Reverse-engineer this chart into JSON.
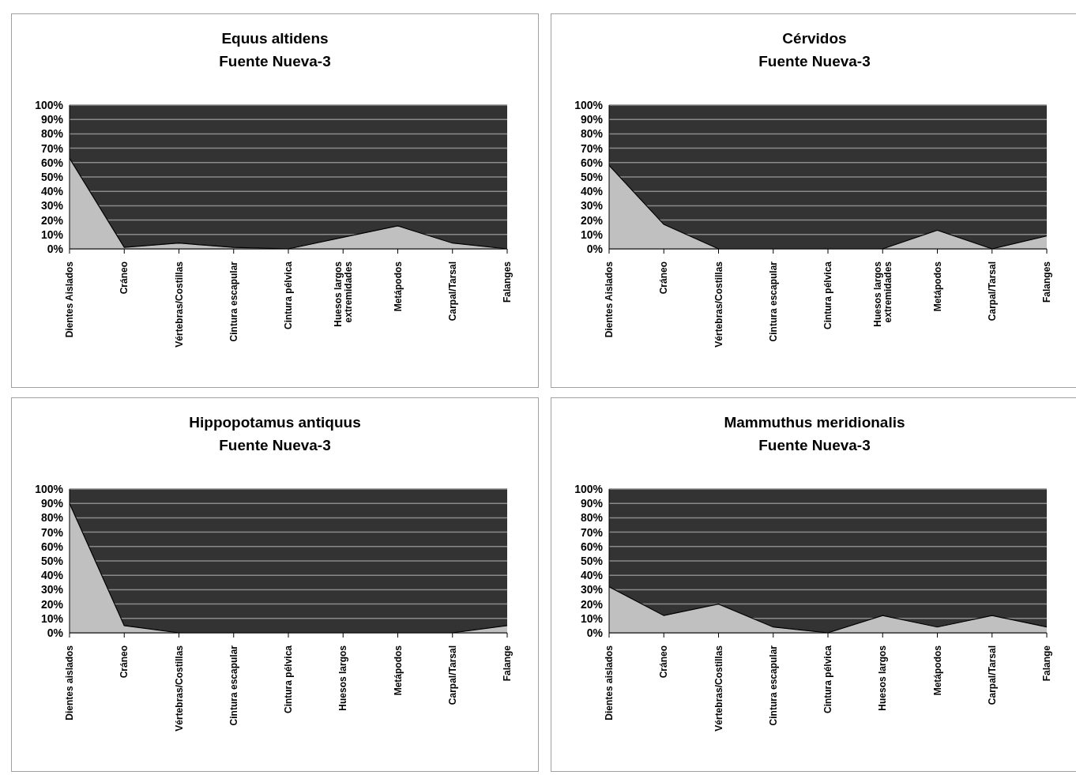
{
  "chart_data": [
    {
      "type": "area",
      "title": "Equus altidens",
      "subtitle": "Fuente Nueva-3",
      "categories": [
        "Dientes Aislados",
        "Cráneo",
        "Vértebras/Costillas",
        "Cintura escapular",
        "Cintura pélvica",
        "Huesos largos extremidades",
        "Metápodos",
        "Carpal/Tarsal",
        "Falanges"
      ],
      "values": [
        63,
        1,
        4,
        1,
        0,
        8,
        16,
        4,
        0
      ],
      "color": "#c0c0c0",
      "ylim": [
        0,
        100
      ],
      "yticks": [
        {
          "value": 0,
          "label": "0%"
        },
        {
          "value": 10,
          "label": "10%"
        },
        {
          "value": 20,
          "label": "20%"
        },
        {
          "value": 30,
          "label": "30%"
        },
        {
          "value": 40,
          "label": "40%"
        },
        {
          "value": 50,
          "label": "50%"
        },
        {
          "value": 60,
          "label": "60%"
        },
        {
          "value": 70,
          "label": "70%"
        },
        {
          "value": 80,
          "label": "80%"
        },
        {
          "value": 90,
          "label": "90%"
        },
        {
          "value": 100,
          "label": "100%"
        }
      ],
      "grid": "y",
      "legend": false
    },
    {
      "type": "area",
      "title": "Cérvidos",
      "subtitle": "Fuente Nueva-3",
      "categories": [
        "Dientes Aislados",
        "Cráneo",
        "Vértebras/Costillas",
        "Cintura escapular",
        "Cintura pélvica",
        "Huesos largos extremidades",
        "Metápodos",
        "Carpal/Tarsal",
        "Falanges"
      ],
      "values": [
        58,
        17,
        0,
        0,
        0,
        0,
        13,
        0,
        9
      ],
      "color": "#c0c0c0",
      "ylim": [
        0,
        100
      ],
      "yticks": [
        {
          "value": 0,
          "label": "0%"
        },
        {
          "value": 10,
          "label": "10%"
        },
        {
          "value": 20,
          "label": "20%"
        },
        {
          "value": 30,
          "label": "30%"
        },
        {
          "value": 40,
          "label": "40%"
        },
        {
          "value": 50,
          "label": "50%"
        },
        {
          "value": 60,
          "label": "60%"
        },
        {
          "value": 70,
          "label": "70%"
        },
        {
          "value": 80,
          "label": "80%"
        },
        {
          "value": 90,
          "label": "90%"
        },
        {
          "value": 100,
          "label": "100%"
        }
      ],
      "grid": "y",
      "legend": false
    },
    {
      "type": "area",
      "title": "Hippopotamus antiquus",
      "subtitle": "Fuente Nueva-3",
      "categories": [
        "Dientes aislados",
        "Cráneo",
        "Vértebras/Costillas",
        "Cintura escapular",
        "Cintura pélvica",
        "Huesos largos",
        "Metápodos",
        "Carpal/Tarsal",
        "Falange"
      ],
      "values": [
        90,
        5,
        0,
        0,
        0,
        0,
        0,
        0,
        5
      ],
      "color": "#c0c0c0",
      "ylim": [
        0,
        100
      ],
      "yticks": [
        {
          "value": 0,
          "label": "0%"
        },
        {
          "value": 10,
          "label": "10%"
        },
        {
          "value": 20,
          "label": "20%"
        },
        {
          "value": 30,
          "label": "30%"
        },
        {
          "value": 40,
          "label": "40%"
        },
        {
          "value": 50,
          "label": "50%"
        },
        {
          "value": 60,
          "label": "60%"
        },
        {
          "value": 70,
          "label": "70%"
        },
        {
          "value": 80,
          "label": "80%"
        },
        {
          "value": 90,
          "label": "90%"
        },
        {
          "value": 100,
          "label": "100%"
        }
      ],
      "grid": "y",
      "legend": false
    },
    {
      "type": "area",
      "title": "Mammuthus meridionalis",
      "subtitle": "Fuente Nueva-3",
      "categories": [
        "Dientes aislados",
        "Cráneo",
        "Vértebras/Costillas",
        "Cintura escapular",
        "Cintura pélvica",
        "Huesos largos",
        "Metápodos",
        "Carpal/Tarsal",
        "Falange"
      ],
      "values": [
        32,
        12,
        20,
        4,
        0,
        12,
        4,
        12,
        4
      ],
      "color": "#c0c0c0",
      "ylim": [
        0,
        100
      ],
      "yticks": [
        {
          "value": 0,
          "label": "0%"
        },
        {
          "value": 10,
          "label": "10%"
        },
        {
          "value": 20,
          "label": "20%"
        },
        {
          "value": 30,
          "label": "30%"
        },
        {
          "value": 40,
          "label": "40%"
        },
        {
          "value": 50,
          "label": "50%"
        },
        {
          "value": 60,
          "label": "60%"
        },
        {
          "value": 70,
          "label": "70%"
        },
        {
          "value": 80,
          "label": "80%"
        },
        {
          "value": 90,
          "label": "90%"
        },
        {
          "value": 100,
          "label": "100%"
        }
      ],
      "grid": "y",
      "legend": false
    }
  ]
}
